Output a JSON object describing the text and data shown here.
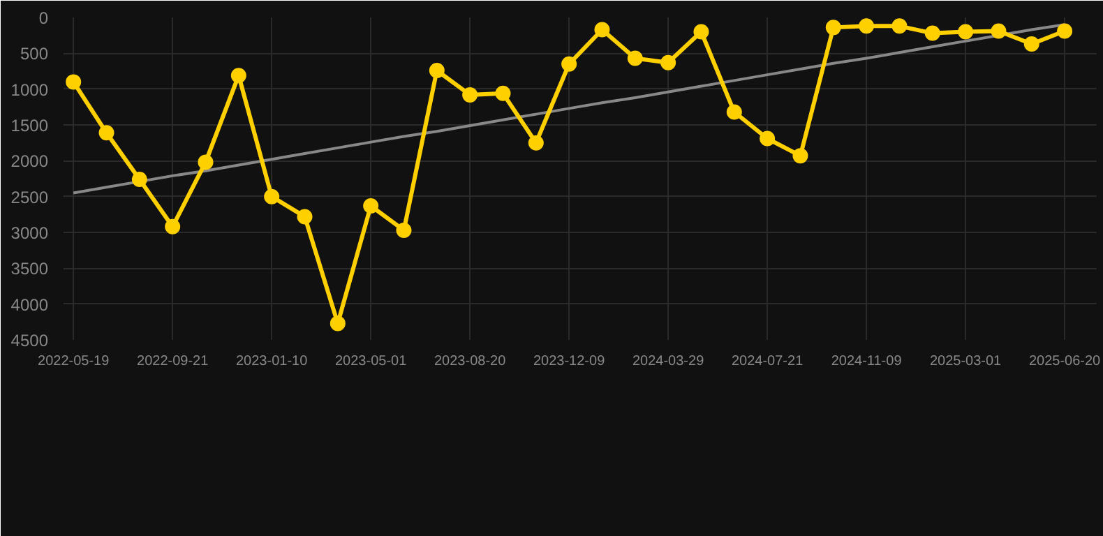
{
  "chart_data": {
    "type": "line",
    "categories": [
      "2022-05-19",
      null,
      null,
      "2022-09-21",
      null,
      null,
      "2023-01-10",
      null,
      null,
      "2023-05-01",
      null,
      null,
      "2023-08-20",
      null,
      null,
      "2023-12-09",
      null,
      null,
      "2024-03-29",
      null,
      null,
      "2024-07-21",
      null,
      null,
      "2024-11-09",
      null,
      null,
      "2025-03-01",
      null,
      null,
      "2025-06-20"
    ],
    "series": [
      {
        "color": "#ffd000",
        "marker": "circle",
        "values": [
          900,
          1610,
          2260,
          2920,
          2020,
          810,
          2500,
          2780,
          4270,
          2630,
          2970,
          740,
          1080,
          1060,
          1750,
          650,
          170,
          570,
          630,
          200,
          1320,
          1690,
          1930,
          140,
          120,
          120,
          220,
          200,
          190,
          370,
          190
        ]
      },
      {
        "type": "line",
        "color": "#888888",
        "marker": "none",
        "values": [
          2450,
          2370,
          2290,
          2210,
          2140,
          2060,
          1980,
          1900,
          1820,
          1740,
          1660,
          1590,
          1510,
          1430,
          1350,
          1270,
          1190,
          1120,
          1040,
          960,
          880,
          800,
          720,
          640,
          570,
          490,
          410,
          330,
          250,
          170,
          100
        ]
      }
    ],
    "ylim": [
      4500,
      0
    ],
    "yticks": [
      0,
      500,
      1000,
      1500,
      2000,
      2500,
      3000,
      3500,
      4000,
      4500
    ],
    "grid": true
  }
}
